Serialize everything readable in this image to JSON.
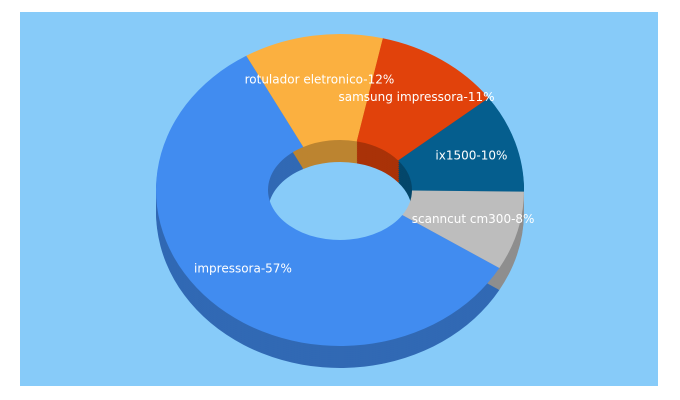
{
  "chart_data": {
    "type": "donut3d",
    "values": [
      57,
      12,
      11,
      10,
      8
    ],
    "value_labels": [
      "impressora-57%",
      "rotulador eletronico-12%",
      "samsung impressora-11%",
      "ix1500-10%",
      "scanncut cm300-8%"
    ],
    "colors": [
      "#418cf0",
      "#fbb040",
      "#e1420b",
      "#055e8e",
      "#bdbdbd"
    ]
  }
}
